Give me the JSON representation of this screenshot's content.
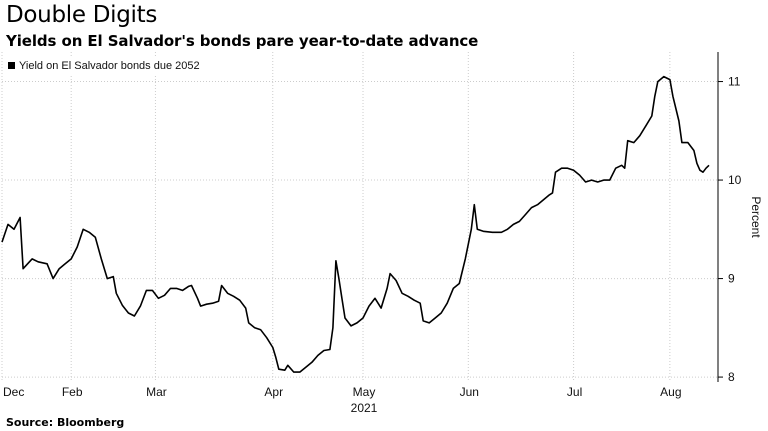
{
  "title": "Double Digits",
  "subtitle": "Yields on El Salvador's bonds pare year-to-date advance",
  "source": "Source: Bloomberg",
  "colors": {
    "line": "#000000",
    "grid": "#cccccc",
    "axis": "#000000"
  },
  "chart_data": {
    "type": "line",
    "title": "Double Digits",
    "subtitle": "Yields on El Salvador's bonds pare year-to-date advance",
    "ylabel": "Percent",
    "xlabel": "",
    "year_label": "2021",
    "ylim": [
      7.95,
      11.3
    ],
    "yticks": [
      8,
      9,
      10,
      11
    ],
    "xlim": [
      0,
      238
    ],
    "xticks": [
      {
        "label": "Dec",
        "x": 0
      },
      {
        "label": "Feb",
        "x": 23
      },
      {
        "label": "Mar",
        "x": 51
      },
      {
        "label": "Apr",
        "x": 90
      },
      {
        "label": "May",
        "x": 120
      },
      {
        "label": "Jun",
        "x": 155
      },
      {
        "label": "Jul",
        "x": 190
      },
      {
        "label": "Aug",
        "x": 222
      }
    ],
    "grid": true,
    "legend": "top-left",
    "series": [
      {
        "name": "Yield on El Salvador bonds due 2052",
        "points": [
          [
            0,
            9.37
          ],
          [
            2,
            9.55
          ],
          [
            4,
            9.5
          ],
          [
            6,
            9.62
          ],
          [
            7,
            9.1
          ],
          [
            10,
            9.2
          ],
          [
            12,
            9.17
          ],
          [
            15,
            9.15
          ],
          [
            17,
            9.0
          ],
          [
            19,
            9.1
          ],
          [
            21,
            9.15
          ],
          [
            23,
            9.2
          ],
          [
            25,
            9.32
          ],
          [
            27,
            9.5
          ],
          [
            29,
            9.47
          ],
          [
            31,
            9.42
          ],
          [
            33,
            9.2
          ],
          [
            35,
            9.0
          ],
          [
            37,
            9.02
          ],
          [
            38,
            8.85
          ],
          [
            40,
            8.73
          ],
          [
            42,
            8.65
          ],
          [
            44,
            8.62
          ],
          [
            46,
            8.72
          ],
          [
            48,
            8.88
          ],
          [
            50,
            8.88
          ],
          [
            52,
            8.8
          ],
          [
            54,
            8.83
          ],
          [
            56,
            8.9
          ],
          [
            58,
            8.9
          ],
          [
            60,
            8.88
          ],
          [
            62,
            8.92
          ],
          [
            63,
            8.93
          ],
          [
            65,
            8.8
          ],
          [
            66,
            8.72
          ],
          [
            68,
            8.74
          ],
          [
            70,
            8.75
          ],
          [
            72,
            8.77
          ],
          [
            73,
            8.93
          ],
          [
            75,
            8.85
          ],
          [
            77,
            8.82
          ],
          [
            79,
            8.78
          ],
          [
            81,
            8.7
          ],
          [
            82,
            8.55
          ],
          [
            84,
            8.5
          ],
          [
            86,
            8.48
          ],
          [
            88,
            8.4
          ],
          [
            90,
            8.3
          ],
          [
            91,
            8.2
          ],
          [
            92,
            8.08
          ],
          [
            94,
            8.07
          ],
          [
            95,
            8.12
          ],
          [
            97,
            8.05
          ],
          [
            99,
            8.05
          ],
          [
            101,
            8.1
          ],
          [
            103,
            8.15
          ],
          [
            105,
            8.22
          ],
          [
            107,
            8.27
          ],
          [
            109,
            8.28
          ],
          [
            110,
            8.5
          ],
          [
            111,
            9.18
          ],
          [
            112,
            9.0
          ],
          [
            113,
            8.8
          ],
          [
            114,
            8.6
          ],
          [
            116,
            8.52
          ],
          [
            118,
            8.55
          ],
          [
            120,
            8.6
          ],
          [
            122,
            8.72
          ],
          [
            124,
            8.8
          ],
          [
            126,
            8.7
          ],
          [
            128,
            8.9
          ],
          [
            129,
            9.05
          ],
          [
            131,
            8.98
          ],
          [
            133,
            8.85
          ],
          [
            135,
            8.82
          ],
          [
            137,
            8.78
          ],
          [
            139,
            8.75
          ],
          [
            140,
            8.57
          ],
          [
            142,
            8.55
          ],
          [
            144,
            8.6
          ],
          [
            146,
            8.65
          ],
          [
            148,
            8.75
          ],
          [
            150,
            8.9
          ],
          [
            152,
            8.95
          ],
          [
            154,
            9.2
          ],
          [
            156,
            9.5
          ],
          [
            157,
            9.75
          ],
          [
            158,
            9.5
          ],
          [
            160,
            9.48
          ],
          [
            163,
            9.47
          ],
          [
            166,
            9.47
          ],
          [
            168,
            9.5
          ],
          [
            170,
            9.55
          ],
          [
            172,
            9.58
          ],
          [
            174,
            9.65
          ],
          [
            176,
            9.72
          ],
          [
            178,
            9.75
          ],
          [
            180,
            9.8
          ],
          [
            182,
            9.85
          ],
          [
            183,
            9.87
          ],
          [
            184,
            10.08
          ],
          [
            186,
            10.12
          ],
          [
            188,
            10.12
          ],
          [
            190,
            10.1
          ],
          [
            192,
            10.05
          ],
          [
            194,
            9.98
          ],
          [
            196,
            10.0
          ],
          [
            198,
            9.98
          ],
          [
            200,
            10.0
          ],
          [
            202,
            10.0
          ],
          [
            204,
            10.12
          ],
          [
            206,
            10.15
          ],
          [
            207,
            10.12
          ],
          [
            208,
            10.4
          ],
          [
            210,
            10.38
          ],
          [
            212,
            10.45
          ],
          [
            214,
            10.55
          ],
          [
            216,
            10.65
          ],
          [
            217,
            10.85
          ],
          [
            218,
            11.0
          ],
          [
            220,
            11.05
          ],
          [
            222,
            11.02
          ],
          [
            223,
            10.85
          ],
          [
            225,
            10.6
          ],
          [
            226,
            10.38
          ],
          [
            228,
            10.38
          ],
          [
            230,
            10.3
          ],
          [
            231,
            10.17
          ],
          [
            232,
            10.1
          ],
          [
            233,
            10.08
          ],
          [
            234,
            10.12
          ],
          [
            235,
            10.15
          ]
        ]
      }
    ]
  }
}
